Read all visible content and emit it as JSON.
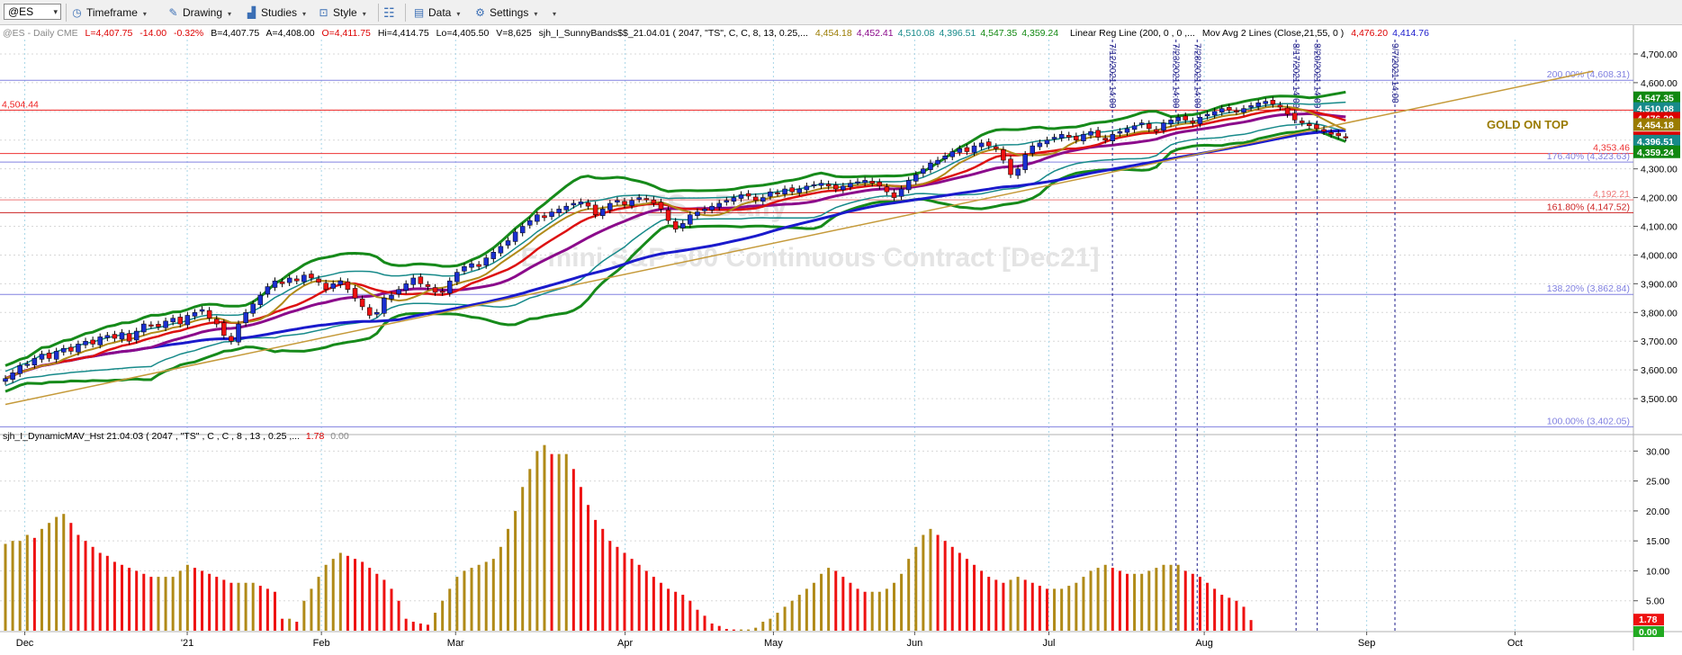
{
  "toolbar": {
    "symbol": "@ES",
    "timeframe": "Timeframe",
    "drawing": "Drawing",
    "studies": "Studies",
    "style": "Style",
    "data": "Data",
    "settings": "Settings"
  },
  "status": {
    "symbol_line": "@ES - Daily  CME",
    "last": "L=4,407.75",
    "chg": "-14.00",
    "pct": "-0.32%",
    "bid": "B=4,407.75",
    "ask": "A=4,408.00",
    "open": "O=4,411.75",
    "hi": "Hi=4,414.75",
    "lo": "Lo=4,405.50",
    "vol": "V=8,625",
    "study1": "sjh_I_SunnyBands$$_21.04.01 (  2047, \"TS\",  C,  C,    8,  13,  0.25,...",
    "study1_vals": [
      {
        "v": "4,454.18",
        "c": "#9a7b00"
      },
      {
        "v": "4,452.41",
        "c": "#8b0a8b"
      },
      {
        "v": "4,510.08",
        "c": "#178a8a"
      },
      {
        "v": "4,396.51",
        "c": "#178a8a"
      },
      {
        "v": "4,547.35",
        "c": "#118811"
      },
      {
        "v": "4,359.24",
        "c": "#118811"
      }
    ],
    "study2": "Linear Reg Line (200, 0 , 0 ,...",
    "study3": "Mov Avg 2 Lines (Close,21,55, 0 )",
    "study3_vals": [
      {
        "v": "4,476.20",
        "c": "#dd0000"
      },
      {
        "v": "4,414.76",
        "c": "#1a1acc"
      }
    ]
  },
  "watermark": {
    "symbol": "@ES - Daily",
    "name": "E-mini S&P 500 Continuous Contract [Dec21]"
  },
  "price_axis": {
    "min": 3400,
    "max": 4750,
    "ticks": [
      "4,700.00",
      "4,600.00",
      "4,500.00",
      "4,400.00",
      "4,300.00",
      "4,200.00",
      "4,100.00",
      "4,000.00",
      "3,900.00",
      "3,800.00",
      "3,700.00",
      "3,600.00",
      "3,500.00"
    ],
    "tick_values": [
      4700,
      4600,
      4500,
      4400,
      4300,
      4200,
      4100,
      4000,
      3900,
      3800,
      3700,
      3600,
      3500
    ],
    "badges": [
      {
        "text": "4,547.35",
        "value": 4547.35,
        "color": "#118811"
      },
      {
        "text": "4,510.08",
        "value": 4510.08,
        "color": "#178a8a"
      },
      {
        "text": "4,476.20",
        "value": 4476.2,
        "color": "#dd0000"
      },
      {
        "text": "4,454.18",
        "value": 4454.18,
        "color": "#9a7b00"
      },
      {
        "text": "4,407.75",
        "value": 4407.75,
        "color": "#dd0000"
      },
      {
        "text": "4,396.51",
        "value": 4396.51,
        "color": "#178a8a"
      },
      {
        "text": "4,359.24",
        "value": 4359.24,
        "color": "#118811"
      }
    ]
  },
  "h_levels": [
    {
      "value": 4608.31,
      "color": "#8080e0",
      "label": "200.00% (4,608.31)"
    },
    {
      "value": 4504.44,
      "color": "#ee2222",
      "left_label": "4,504.44"
    },
    {
      "value": 4353.46,
      "color": "#ee3333",
      "label": "4,353.46"
    },
    {
      "value": 4323.63,
      "color": "#8080e0",
      "label": "176.40% (4,323.63)"
    },
    {
      "value": 4192.21,
      "color": "#ee7777",
      "label": "4,192.21"
    },
    {
      "value": 4147.52,
      "color": "#cc2222",
      "label": "161.80% (4,147.52)"
    },
    {
      "value": 3862.84,
      "color": "#8080e0",
      "label": "138.20% (3,862.84)"
    },
    {
      "value": 3402.05,
      "color": "#8080e0",
      "label": "100.00% (3,402.05)"
    }
  ],
  "note": "GOLD ON TOP",
  "time_markers": [
    {
      "date": "7/12/2021",
      "x_day": 157
    },
    {
      "date": "7/23/2021",
      "x_day": 166
    },
    {
      "date": "7/28/2021",
      "x_day": 169
    },
    {
      "date": "8/17/2021",
      "x_day": 183
    },
    {
      "date": "8/20/2021",
      "x_day": 186
    },
    {
      "date": "9/7/2021",
      "x_day": 197
    }
  ],
  "time_marker_suffix": "14:00",
  "x_axis": {
    "labels": [
      "Dec",
      "'21",
      "Feb",
      "Mar",
      "Apr",
      "May",
      "Jun",
      "Jul",
      "Aug",
      "Sep",
      "Oct"
    ],
    "label_days": [
      3,
      26,
      45,
      64,
      88,
      109,
      129,
      148,
      170,
      193,
      214
    ],
    "total_days": 230
  },
  "lower": {
    "label": "sjh_I_DynamicMAV_Hst 21.04.03 ( 2047 , \"TS\" , C , C ,  8 , 13 , 0.25 ,...",
    "v1": "1.78",
    "v2": "0.00",
    "min": 0,
    "max": 32,
    "ticks": [
      "30.00",
      "25.00",
      "20.00",
      "15.00",
      "10.00",
      "5.00"
    ],
    "tick_values": [
      30,
      25,
      20,
      15,
      10,
      5
    ],
    "badge1": "1.78",
    "badge2": "0.00"
  },
  "chart_data": {
    "type": "bar",
    "title": "sjh_I_DynamicMAV_Hst",
    "series": [
      {
        "name": "DynamicMAV histogram",
        "values": [
          14.5,
          15,
          15,
          16,
          15.5,
          17,
          18,
          19,
          19.5,
          18,
          16,
          15,
          14,
          13,
          12.5,
          11.5,
          11,
          10.5,
          10,
          9.5,
          9,
          9,
          9,
          9,
          10,
          11,
          10.5,
          10,
          9.5,
          9,
          8.5,
          8,
          8,
          8,
          8,
          7.5,
          7,
          6.5,
          2,
          2,
          1.5,
          5,
          7,
          9,
          11,
          12,
          13,
          12.5,
          12,
          11.5,
          10.5,
          9.5,
          8.5,
          7,
          5,
          2,
          1.5,
          1.2,
          1,
          3,
          5,
          7,
          9,
          10,
          10.5,
          11,
          11.5,
          12,
          14,
          17,
          20,
          24,
          27,
          30,
          31,
          29.5,
          29.5,
          29.5,
          27,
          24,
          21,
          18.5,
          17,
          15,
          14,
          13,
          12,
          11,
          10,
          9,
          8,
          7,
          6.5,
          6,
          5,
          3.5,
          2.5,
          1.2,
          0.8,
          0.3,
          0.2,
          0.2,
          0.2,
          0.5,
          1.5,
          2,
          3,
          4,
          5,
          6,
          7,
          8,
          9.5,
          10.5,
          10,
          9,
          8,
          7,
          6.5,
          6.5,
          6.5,
          7,
          8,
          9.5,
          12,
          14,
          16,
          17,
          16,
          15,
          14,
          13,
          12,
          11,
          10,
          9,
          8.5,
          8,
          8.5,
          9,
          8.5,
          8,
          7.5,
          7,
          7,
          7,
          7.5,
          8,
          9,
          10,
          10.5,
          11,
          10.5,
          10,
          9.5,
          9.5,
          9.5,
          10,
          10.5,
          11,
          11,
          11,
          10,
          9.5,
          9,
          8,
          7,
          6,
          5.5,
          5,
          4,
          1.78
        ]
      }
    ],
    "ylim": [
      0,
      32
    ]
  },
  "price_series": {
    "close": [
      3570,
      3590,
      3615,
      3620,
      3640,
      3655,
      3640,
      3665,
      3675,
      3665,
      3690,
      3700,
      3690,
      3715,
      3720,
      3710,
      3730,
      3700,
      3735,
      3760,
      3755,
      3750,
      3770,
      3780,
      3760,
      3790,
      3800,
      3810,
      3780,
      3760,
      3720,
      3700,
      3760,
      3800,
      3830,
      3860,
      3890,
      3910,
      3900,
      3920,
      3910,
      3930,
      3920,
      3905,
      3880,
      3900,
      3910,
      3880,
      3850,
      3820,
      3790,
      3800,
      3850,
      3860,
      3880,
      3900,
      3920,
      3900,
      3890,
      3870,
      3870,
      3910,
      3940,
      3960,
      3970,
      3960,
      3990,
      4010,
      4030,
      4050,
      4080,
      4100,
      4120,
      4140,
      4130,
      4150,
      4160,
      4170,
      4180,
      4185,
      4170,
      4140,
      4160,
      4180,
      4190,
      4175,
      4190,
      4200,
      4195,
      4180,
      4160,
      4120,
      4090,
      4110,
      4140,
      4150,
      4160,
      4170,
      4180,
      4190,
      4200,
      4210,
      4205,
      4190,
      4200,
      4220,
      4215,
      4230,
      4220,
      4230,
      4240,
      4245,
      4250,
      4240,
      4230,
      4240,
      4250,
      4255,
      4260,
      4250,
      4240,
      4220,
      4200,
      4230,
      4260,
      4280,
      4300,
      4320,
      4330,
      4345,
      4360,
      4370,
      4360,
      4380,
      4390,
      4380,
      4370,
      4330,
      4280,
      4300,
      4350,
      4380,
      4390,
      4400,
      4410,
      4420,
      4410,
      4400,
      4420,
      4430,
      4410,
      4400,
      4420,
      4430,
      4440,
      4450,
      4460,
      4440,
      4430,
      4460,
      4470,
      4480,
      4470,
      4460,
      4480,
      4490,
      4500,
      4510,
      4505,
      4500,
      4510,
      4520,
      4530,
      4535,
      4525,
      4515,
      4490,
      4470,
      4460,
      4450,
      4440,
      4430,
      4420,
      4415,
      4407.75
    ]
  },
  "colors": {
    "up": "#1a2fd0",
    "down": "#ee1111",
    "gold": "#b08a18",
    "band_outer": "#168a1a",
    "band_inner": "#178a8a",
    "ma_fast": "#dd1111",
    "ma_mid": "#8b0a8b",
    "ma_slow": "#1a1acc",
    "regline": "#c59a3a"
  }
}
